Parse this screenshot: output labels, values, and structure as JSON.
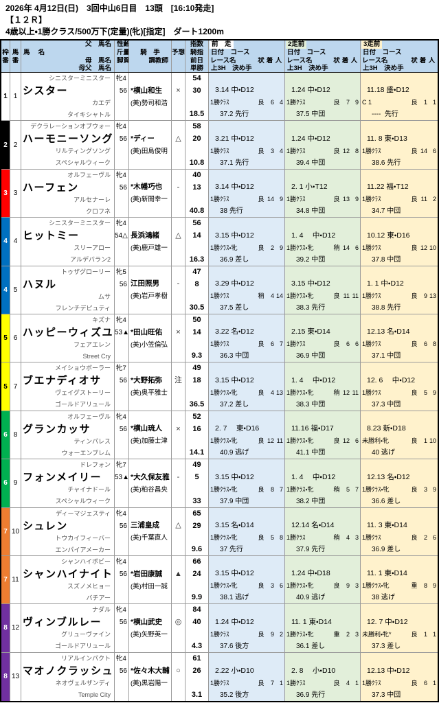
{
  "info": {
    "date_line": "2026年 4月12日(日)　3回中山6日目　13頭　[16:10発走]",
    "race_line": "【１２Ｒ】",
    "class_line": "4歳以上・1勝クラス/500万下(定量)(牝)[指定]　ダート1200m"
  },
  "colors": {
    "header_bg": "#BDD7EE",
    "prev1_bg": "#DEEBF7",
    "prev2_bg": "#E2EFDA",
    "prev3_bg": "#FFF2CC",
    "frame_1": "#FFFFFF",
    "frame_2": "#000000",
    "frame_3": "#FF0000",
    "frame_4": "#0070C0",
    "frame_5": "#FFFF00",
    "frame_6": "#00B050",
    "frame_7": "#ED7D31",
    "frame_8": "#7030A0"
  },
  "table_header": {
    "waku_top": "枠",
    "waku_bottom": "番",
    "uma_top": "馬",
    "uma_bottom": "番",
    "sire": "父　馬名",
    "name": "馬　 名",
    "dam": "母　馬名",
    "damsire": "母父　馬名",
    "sexage": "性齢",
    "weight": "斤量",
    "style": "脚質",
    "jockey": "騎　手",
    "trainer": "調教師",
    "mark": "予想",
    "index1": "指数",
    "index2": "騎指",
    "index3": "前日",
    "index4": "単勝",
    "prev1": "前　走",
    "prev2": "2走前",
    "prev3": "3走前",
    "date_course": "日付　コース",
    "race_name": "レース名",
    "cond": "状",
    "fin": "着",
    "pop": "人",
    "closing": "上3H　決め手"
  },
  "horses": [
    {
      "frame": "1",
      "number": "1",
      "frame_color": "#FFFFFF",
      "frame_text": "#000000",
      "sire": "シニスターミニスター",
      "name": "シスター",
      "dam": "カエデ",
      "damsire": "タイキシャトル",
      "sex_age": "牝4",
      "weight": "56",
      "jockey": "*横山和生",
      "trainer": "(美)勢司和浩",
      "mark": "×",
      "idx1": "54",
      "idx2": "30",
      "odds": "18.5",
      "races": [
        {
          "date_course": "3.14 中・D12",
          "race": "1勝ｸﾗｽ",
          "cond": "良",
          "fin": "6",
          "pop": "4",
          "closing": "37.2 先行"
        },
        {
          "date_course": "1.24 中・D12",
          "race": "1勝ｸﾗｽ",
          "cond": "良",
          "fin": "7",
          "pop": "9",
          "closing": "37.5 中団"
        },
        {
          "date_course": "11.18 盛・D12",
          "race": "C 1",
          "cond": "良",
          "fin": "1",
          "pop": "1",
          "closing": "----  先行"
        }
      ]
    },
    {
      "frame": "2",
      "number": "2",
      "frame_color": "#000000",
      "frame_text": "#FFFFFF",
      "sire": "デクラレーションオブウォー",
      "name": "ハーモニーソング",
      "dam": "リルティングソング",
      "damsire": "スペシャルウィーク",
      "sex_age": "牝4",
      "weight": "56",
      "jockey": "*ディー",
      "trainer": "(美)田島俊明",
      "mark": "△",
      "idx1": "58",
      "idx2": "20",
      "odds": "10.8",
      "races": [
        {
          "date_course": "3.21 中・D12",
          "race": "1勝ｸﾗｽ",
          "cond": "良",
          "fin": "3",
          "pop": "4",
          "closing": "37.1 先行"
        },
        {
          "date_course": "1.24 中・D12",
          "race": "1勝ｸﾗｽ",
          "cond": "良",
          "fin": "12",
          "pop": "8",
          "closing": "39.4 中団"
        },
        {
          "date_course": "11. 8 東・D13",
          "race": "1勝ｸﾗｽ",
          "cond": "良",
          "fin": "14",
          "pop": "6",
          "closing": "38.6 先行"
        }
      ]
    },
    {
      "frame": "3",
      "number": "3",
      "frame_color": "#FF0000",
      "frame_text": "#FFFFFF",
      "sire": "オルフェーヴル",
      "name": "ハーフェン",
      "dam": "アルセナーレ",
      "damsire": "クロフネ",
      "sex_age": "牝4",
      "weight": "56",
      "jockey": "*木幡巧也",
      "trainer": "(美)新開幸一",
      "mark": "-",
      "idx1": "40",
      "idx2": "13",
      "odds": "40.8",
      "races": [
        {
          "date_course": "3.14 中・D12",
          "race": "1勝ｸﾗｽ",
          "cond": "良",
          "fin": "14",
          "pop": "9",
          "closing": "38 先行"
        },
        {
          "date_course": "2. 1 小・T12",
          "race": "1勝ｸﾗｽ",
          "cond": "良",
          "fin": "13",
          "pop": "9",
          "closing": "34.8 中団"
        },
        {
          "date_course": "11.22 福・T12",
          "race": "1勝ｸﾗｽ",
          "cond": "良",
          "fin": "11",
          "pop": "2",
          "closing": "34.7 中団"
        }
      ]
    },
    {
      "frame": "4",
      "number": "4",
      "frame_color": "#0070C0",
      "frame_text": "#FFFFFF",
      "sire": "シニスターミニスター",
      "name": "ヒットミー",
      "dam": "スリーアロー",
      "damsire": "アルデバラン2",
      "sex_age": "牝4",
      "weight": "54△",
      "jockey": "長浜鴻緒",
      "trainer": "(美)鹿戸雄一",
      "mark": "△",
      "idx1": "56",
      "idx2": "14",
      "odds": "16.3",
      "races": [
        {
          "date_course": "3.15 中・D12",
          "race": "1勝ｸﾗｽ・牝",
          "cond": "良",
          "fin": "2",
          "pop": "9",
          "closing": "36.9 差し"
        },
        {
          "date_course": "1. 4　 中・D12",
          "race": "1勝ｸﾗｽ・牝",
          "cond": "稍",
          "fin": "14",
          "pop": "6",
          "closing": "39.2 中団"
        },
        {
          "date_course": "10.12 東・D16",
          "race": "1勝ｸﾗｽ",
          "cond": "良",
          "fin": "12",
          "pop": "10",
          "closing": "37.8 中団"
        }
      ]
    },
    {
      "frame": "4",
      "number": "5",
      "frame_color": "#0070C0",
      "frame_text": "#FFFFFF",
      "sire": "トゥザグローリー",
      "name": "ハヌル",
      "dam": "ムサ",
      "damsire": "フレンチデピュティ",
      "sex_age": "牝5",
      "weight": "56",
      "jockey": "江田照男",
      "trainer": "(美)岩戸孝樹",
      "mark": "-",
      "idx1": "47",
      "idx2": "8",
      "odds": "30.5",
      "races": [
        {
          "date_course": "3.29 中・D12",
          "race": "1勝ｸﾗｽ",
          "cond": "稍",
          "fin": "4",
          "pop": "14",
          "closing": "37.5 差し"
        },
        {
          "date_course": "3.15 中・D12",
          "race": "1勝ｸﾗｽ・牝",
          "cond": "良",
          "fin": "11",
          "pop": "11",
          "closing": "38.3 先行"
        },
        {
          "date_course": "1. 1 中・D12",
          "race": "1勝ｸﾗｽ",
          "cond": "良",
          "fin": "9",
          "pop": "13",
          "closing": "38.8 先行"
        }
      ]
    },
    {
      "frame": "5",
      "number": "6",
      "frame_color": "#FFFF00",
      "frame_text": "#000000",
      "sire": "キズナ",
      "name": "ハッピーウィズユー",
      "dam": "フェアエレン",
      "damsire": "Street Cry",
      "sex_age": "牝4",
      "weight": "53▲",
      "jockey": "*田山旺佑",
      "trainer": "(美)小笠倫弘",
      "mark": "×",
      "idx1": "50",
      "idx2": "14",
      "odds": "9.3",
      "races": [
        {
          "date_course": "3.22 名・D12",
          "race": "1勝ｸﾗｽ",
          "cond": "良",
          "fin": "6",
          "pop": "7",
          "closing": "36.3 中団"
        },
        {
          "date_course": "2.15 東・D14",
          "race": "1勝ｸﾗｽ",
          "cond": "良",
          "fin": "6",
          "pop": "6",
          "closing": "36.9 中団"
        },
        {
          "date_course": "12.13 名・D14",
          "race": "1勝ｸﾗｽ",
          "cond": "良",
          "fin": "6",
          "pop": "8",
          "closing": "37.1 中団"
        }
      ]
    },
    {
      "frame": "5",
      "number": "7",
      "frame_color": "#FFFF00",
      "frame_text": "#000000",
      "sire": "メイショウボーラー",
      "name": "ブエナディオサ",
      "dam": "ヴェイグストーリー",
      "damsire": "ゴールドアリュール",
      "sex_age": "牝7",
      "weight": "56",
      "jockey": "*大野拓弥",
      "trainer": "(美)奥平雅士",
      "mark": "注",
      "idx1": "49",
      "idx2": "18",
      "odds": "36.5",
      "races": [
        {
          "date_course": "3.15 中・D12",
          "race": "1勝ｸﾗｽ・牝",
          "cond": "良",
          "fin": "4",
          "pop": "13",
          "closing": "37.2 差し"
        },
        {
          "date_course": "1. 4　 中・D12",
          "race": "1勝ｸﾗｽ・牝",
          "cond": "稍",
          "fin": "12",
          "pop": "11",
          "closing": "38.3 中団"
        },
        {
          "date_course": "12. 6　 中・D12",
          "race": "1勝ｸﾗｽ",
          "cond": "良",
          "fin": "5",
          "pop": "9",
          "closing": "37.3 中団"
        }
      ]
    },
    {
      "frame": "6",
      "number": "8",
      "frame_color": "#00B050",
      "frame_text": "#FFFFFF",
      "sire": "オルフェーヴル",
      "name": "グランカッサ",
      "dam": "ティンパレス",
      "damsire": "ウォーエンブレム",
      "sex_age": "牝4",
      "weight": "56",
      "jockey": "*横山琉人",
      "trainer": "(美)加藤士津",
      "mark": "×",
      "idx1": "52",
      "idx2": "16",
      "odds": "14.1",
      "races": [
        {
          "date_course": "2. 7　 東・D16",
          "race": "1勝ｸﾗｽ・牝",
          "cond": "良",
          "fin": "12",
          "pop": "11",
          "closing": "40.9 逃げ"
        },
        {
          "date_course": "11.16 福・D17",
          "race": "1勝ｸﾗｽ・牝",
          "cond": "良",
          "fin": "12",
          "pop": "6",
          "closing": "41.1 中団"
        },
        {
          "date_course": "8.23 新・D18",
          "race": "未勝利・牝",
          "cond": "良",
          "fin": "1",
          "pop": "10",
          "closing": "40 逃げ"
        }
      ]
    },
    {
      "frame": "6",
      "number": "9",
      "frame_color": "#00B050",
      "frame_text": "#FFFFFF",
      "sire": "ドレフォン",
      "name": "フォンメイリー",
      "dam": "チャイナドール",
      "damsire": "スペシャルウィーク",
      "sex_age": "牝7",
      "weight": "53▲",
      "jockey": "*大久保友雅",
      "trainer": "(美)粕谷昌央",
      "mark": "-",
      "idx1": "49",
      "idx2": "5",
      "odds": "33",
      "races": [
        {
          "date_course": "3.15 中・D12",
          "race": "1勝ｸﾗｽ・牝",
          "cond": "良",
          "fin": "8",
          "pop": "7",
          "closing": "37.9 中団"
        },
        {
          "date_course": "1. 4　 中・D12",
          "race": "1勝ｸﾗｽ・牝",
          "cond": "稍",
          "fin": "5",
          "pop": "7",
          "closing": "38.2 中団"
        },
        {
          "date_course": "12.13 名・D12",
          "race": "1勝ｸﾗｽ・牝",
          "cond": "良",
          "fin": "3",
          "pop": "9",
          "closing": "36.6 差し"
        }
      ]
    },
    {
      "frame": "7",
      "number": "10",
      "frame_color": "#ED7D31",
      "frame_text": "#FFFFFF",
      "sire": "ディーマジェスティ",
      "name": "シュレン",
      "dam": "トウカイフィーバー",
      "damsire": "エンパイアメーカー",
      "sex_age": "牝4",
      "weight": "56",
      "jockey": "三浦皇成",
      "trainer": "(美)千葉直人",
      "mark": "△",
      "idx1": "65",
      "idx2": "29",
      "odds": "9.6",
      "races": [
        {
          "date_course": "3.15 名・D14",
          "race": "1勝ｸﾗｽ・牝",
          "cond": "良",
          "fin": "5",
          "pop": "8",
          "closing": "37 先行"
        },
        {
          "date_course": "12.14 名・D14",
          "race": "1勝ｸﾗｽ",
          "cond": "稍",
          "fin": "4",
          "pop": "3",
          "closing": "37.9 先行"
        },
        {
          "date_course": "11. 3 東・D14",
          "race": "1勝ｸﾗｽ",
          "cond": "良",
          "fin": "2",
          "pop": "6",
          "closing": "36.9 差し"
        }
      ]
    },
    {
      "frame": "7",
      "number": "11",
      "frame_color": "#ED7D31",
      "frame_text": "#FFFFFF",
      "sire": "シャンハイボビー",
      "name": "シャンハイナイト",
      "dam": "スズノメヒョー",
      "damsire": "バチアー",
      "sex_age": "牝4",
      "weight": "56",
      "jockey": "*岩田康誠",
      "trainer": "(美)村田一誠",
      "mark": "▲",
      "idx1": "66",
      "idx2": "24",
      "odds": "9.9",
      "races": [
        {
          "date_course": "3.15 中・D12",
          "race": "1勝ｸﾗｽ・牝",
          "cond": "良",
          "fin": "3",
          "pop": "6",
          "closing": "38.1 逃げ"
        },
        {
          "date_course": "1.24 中・D18",
          "race": "1勝ｸﾗｽ・牝",
          "cond": "良",
          "fin": "9",
          "pop": "3",
          "closing": "40.9 逃げ"
        },
        {
          "date_course": "11. 1 東・D14",
          "race": "1勝ｸﾗｽ・牝",
          "cond": "重",
          "fin": "8",
          "pop": "9",
          "closing": "38 逃げ"
        }
      ]
    },
    {
      "frame": "8",
      "number": "12",
      "frame_color": "#7030A0",
      "frame_text": "#FFFFFF",
      "sire": "ナダル",
      "name": "ヴィンブルレー",
      "dam": "グリューヴァイン",
      "damsire": "ゴールドアリュール",
      "sex_age": "牝4",
      "weight": "56",
      "jockey": "*横山武史",
      "trainer": "(美)矢野英一",
      "mark": "◎",
      "idx1": "84",
      "idx2": "40",
      "odds": "4.3",
      "races": [
        {
          "date_course": "1.24 中・D12",
          "race": "1勝ｸﾗｽ",
          "cond": "良",
          "fin": "9",
          "pop": "2",
          "closing": "37.6 後方"
        },
        {
          "date_course": "11. 1 東・D14",
          "race": "1勝ｸﾗｽ・牝",
          "cond": "重",
          "fin": "2",
          "pop": "3",
          "closing": "36.1 差し"
        },
        {
          "date_course": "12. 7 中・D12",
          "race": "未勝利・牝*",
          "cond": "良",
          "fin": "1",
          "pop": "1",
          "closing": "37.3 差し"
        }
      ]
    },
    {
      "frame": "8",
      "number": "13",
      "frame_color": "#7030A0",
      "frame_text": "#FFFFFF",
      "sire": "リアルインパクト",
      "name": "マオノクラッシュ",
      "dam": "ネオヴェルザンディ",
      "damsire": "Temple City",
      "sex_age": "牝4",
      "weight": "56",
      "jockey": "*佐々木大輔",
      "trainer": "(美)黒岩陽一",
      "mark": "○",
      "idx1": "61",
      "idx2": "26",
      "odds": "3.1",
      "races": [
        {
          "date_course": "2.22 小・D10",
          "race": "1勝ｸﾗｽ",
          "cond": "良",
          "fin": "7",
          "pop": "1",
          "closing": "35.2 後方"
        },
        {
          "date_course": "2. 8　 小・D10",
          "race": "1勝ｸﾗｽ",
          "cond": "良",
          "fin": "4",
          "pop": "1",
          "closing": "36.9 先行"
        },
        {
          "date_course": "12.13 中・D12",
          "race": "1勝ｸﾗｽ",
          "cond": "良",
          "fin": "6",
          "pop": "1",
          "closing": "37.3 中団"
        }
      ]
    }
  ]
}
